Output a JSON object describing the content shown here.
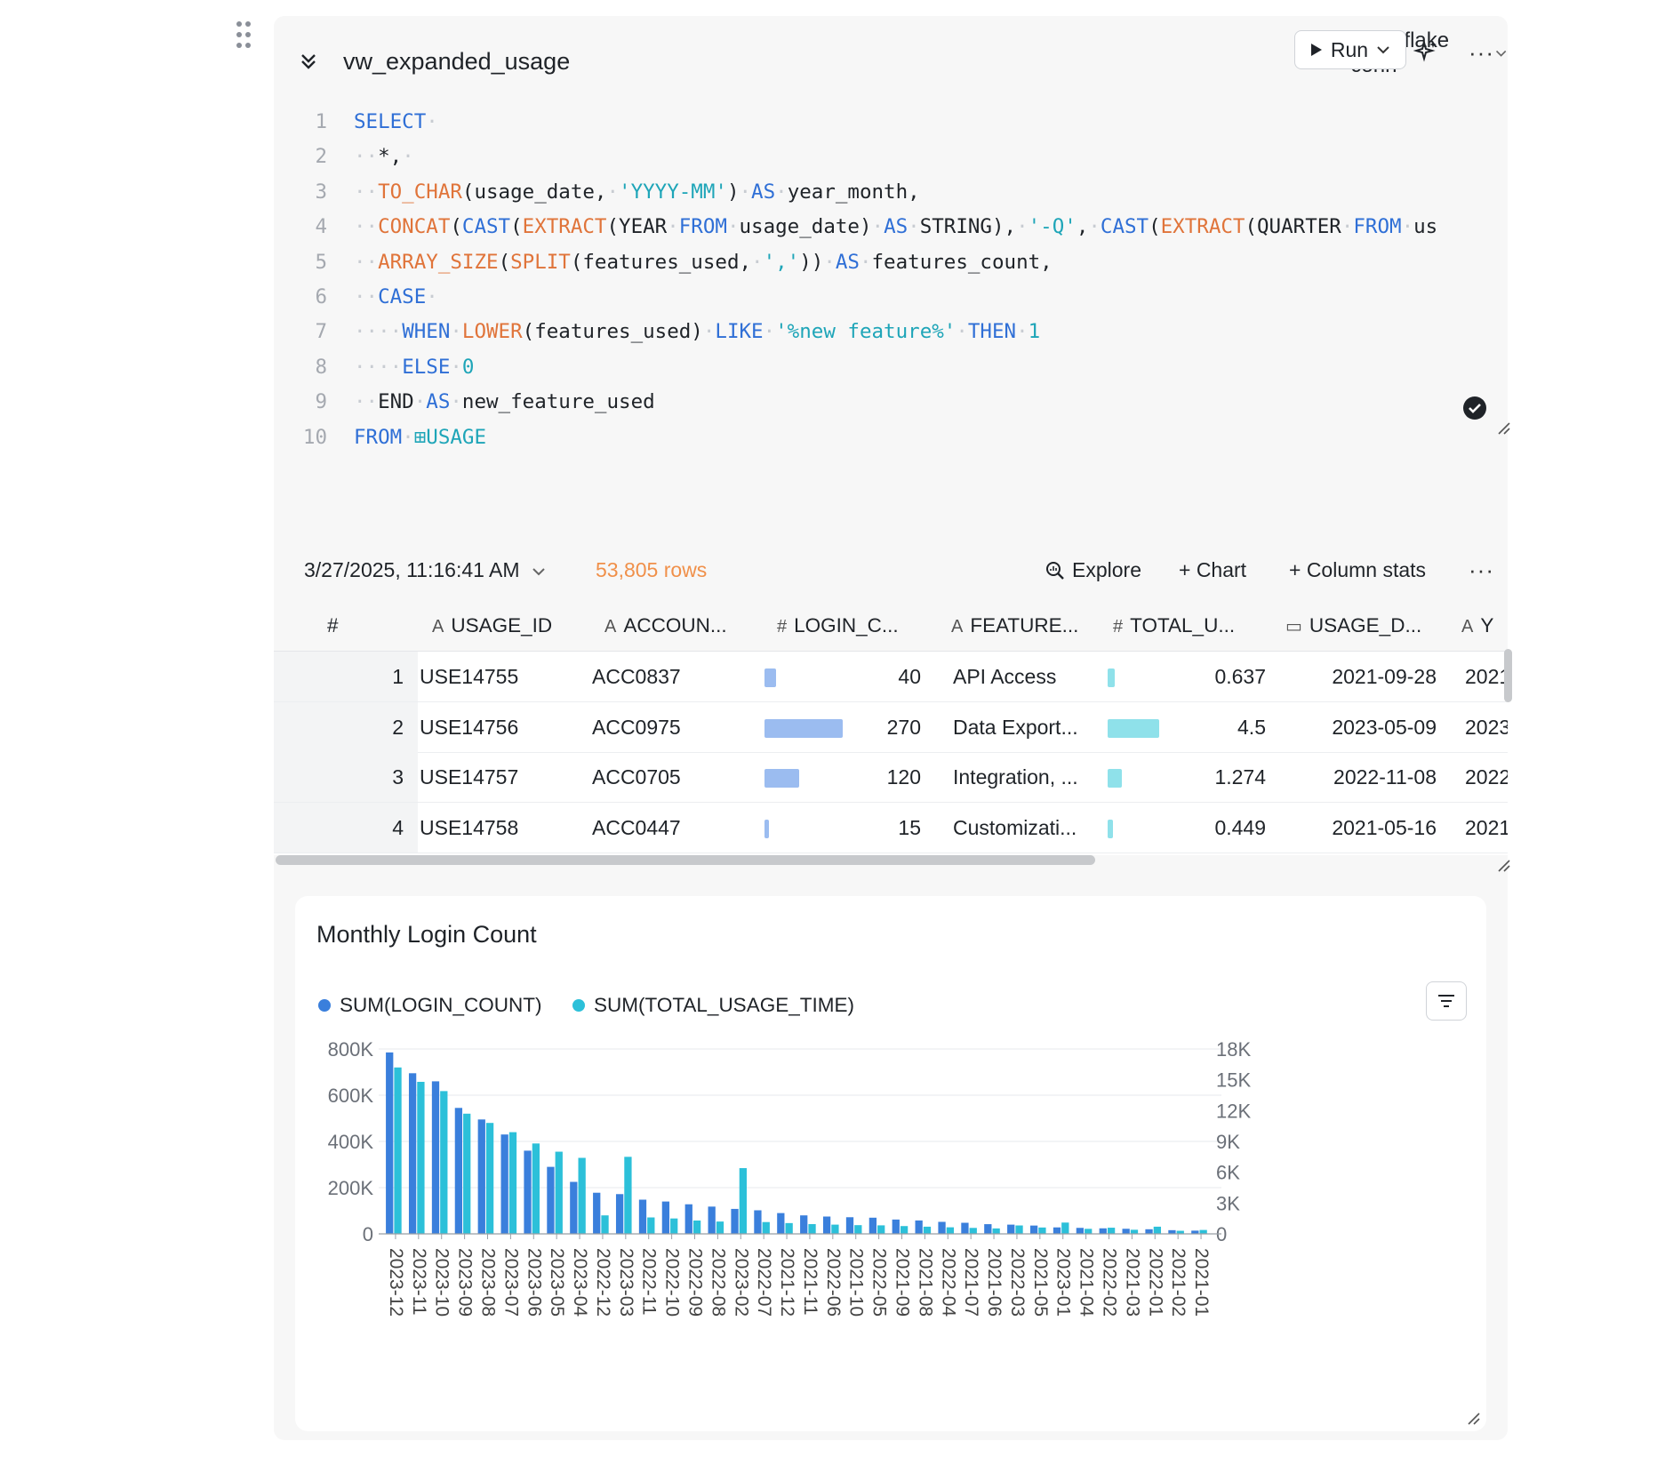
{
  "cell": {
    "title": "vw_expanded_usage",
    "connection_label": "Snowflake conn",
    "run_label": "Run"
  },
  "code_lines": [
    {
      "n": "1",
      "html": "<span class=\"kw\">SELECT</span><span class=\"ws\">·</span>"
    },
    {
      "n": "2",
      "html": "<span class=\"ws\">··</span>*,<span class=\"ws\">·</span>"
    },
    {
      "n": "3",
      "html": "<span class=\"ws\">··</span><span class=\"fn\">TO_CHAR</span>(usage_date,<span class=\"ws\">·</span><span class=\"str\">'YYYY-MM'</span>)<span class=\"ws\">·</span><span class=\"kw\">AS</span><span class=\"ws\">·</span>year_month,"
    },
    {
      "n": "4",
      "html": "<span class=\"ws\">··</span><span class=\"fn\">CONCAT</span>(<span class=\"kw\">CAST</span>(<span class=\"fn\">EXTRACT</span>(YEAR<span class=\"ws\">·</span><span class=\"kw\">FROM</span><span class=\"ws\">·</span>usage_date)<span class=\"ws\">·</span><span class=\"kw\">AS</span><span class=\"ws\">·</span>STRING),<span class=\"ws\">·</span><span class=\"str\">'-Q'</span>,<span class=\"ws\">·</span><span class=\"kw\">CAST</span>(<span class=\"fn\">EXTRACT</span>(QUARTER<span class=\"ws\">·</span><span class=\"kw\">FROM</span><span class=\"ws\">·</span>us"
    },
    {
      "n": "5",
      "html": "<span class=\"ws\">··</span><span class=\"fn\">ARRAY_SIZE</span>(<span class=\"fn\">SPLIT</span>(features_used,<span class=\"ws\">·</span><span class=\"str\">','</span>))<span class=\"ws\">·</span><span class=\"kw\">AS</span><span class=\"ws\">·</span>features_count,"
    },
    {
      "n": "6",
      "html": "<span class=\"ws\">··</span><span class=\"kw\">CASE</span><span class=\"ws\">·</span>"
    },
    {
      "n": "7",
      "html": "<span class=\"ws\">····</span><span class=\"kw\">WHEN</span><span class=\"ws\">·</span><span class=\"fn\">LOWER</span>(features_used)<span class=\"ws\">·</span><span class=\"kw\">LIKE</span><span class=\"ws\">·</span><span class=\"str\">'%new feature%'</span><span class=\"ws\">·</span><span class=\"kw\">THEN</span><span class=\"ws\">·</span><span class=\"num\">1</span>"
    },
    {
      "n": "8",
      "html": "<span class=\"ws\">····</span><span class=\"kw\">ELSE</span><span class=\"ws\">·</span><span class=\"num\">0</span>"
    },
    {
      "n": "9",
      "html": "<span class=\"ws\">··</span>END<span class=\"ws\">·</span><span class=\"kw\">AS</span><span class=\"ws\">·</span>new_feature_used"
    },
    {
      "n": "10",
      "html": "<span class=\"kw\">FROM</span><span class=\"ws\">·</span><span class=\"tbl\">⊞USAGE</span>"
    }
  ],
  "results": {
    "run_time": "3/27/2025, 11:16:41 AM",
    "row_count": "53,805 rows",
    "actions": {
      "explore": "Explore",
      "chart": "+ Chart",
      "column_stats": "+ Column stats"
    }
  },
  "table": {
    "columns": [
      {
        "icon": "#",
        "label": "#"
      },
      {
        "icon": "A",
        "label": "USAGE_ID"
      },
      {
        "icon": "A",
        "label": "ACCOUN..."
      },
      {
        "icon": "#",
        "label": "LOGIN_C..."
      },
      {
        "icon": "A",
        "label": "FEATURE..."
      },
      {
        "icon": "#",
        "label": "TOTAL_U..."
      },
      {
        "icon": "calendar-icon",
        "label": "USAGE_D..."
      },
      {
        "icon": "A",
        "label": "Y"
      }
    ],
    "rows": [
      {
        "n": "1",
        "usage_id": "USE14755",
        "account": "ACC0837",
        "login": "40",
        "login_frac": 0.148,
        "feature": "API Access",
        "total": "0.637",
        "total_frac": 0.142,
        "date": "2021-09-28",
        "ym": "2021"
      },
      {
        "n": "2",
        "usage_id": "USE14756",
        "account": "ACC0975",
        "login": "270",
        "login_frac": 1.0,
        "feature": "Data Export...",
        "total": "4.5",
        "total_frac": 1.0,
        "date": "2023-05-09",
        "ym": "2023"
      },
      {
        "n": "3",
        "usage_id": "USE14757",
        "account": "ACC0705",
        "login": "120",
        "login_frac": 0.444,
        "feature": "Integration, ...",
        "total": "1.274",
        "total_frac": 0.283,
        "date": "2022-11-08",
        "ym": "2022"
      },
      {
        "n": "4",
        "usage_id": "USE14758",
        "account": "ACC0447",
        "login": "15",
        "login_frac": 0.056,
        "feature": "Customizati...",
        "total": "0.449",
        "total_frac": 0.1,
        "date": "2021-05-16",
        "ym": "2021"
      }
    ]
  },
  "colors": {
    "login_series": "#3a7fdc",
    "usage_series": "#2cc0d9",
    "login_bar_cell": "#9bbcf0",
    "usage_bar_cell": "#8fe1ea"
  },
  "chart_data": {
    "type": "bar",
    "title": "Monthly Login Count",
    "categories": [
      "2023-12",
      "2023-11",
      "2023-10",
      "2023-09",
      "2023-08",
      "2023-07",
      "2023-06",
      "2023-05",
      "2023-04",
      "2022-12",
      "2023-03",
      "2022-11",
      "2022-10",
      "2022-09",
      "2022-08",
      "2023-02",
      "2022-07",
      "2021-12",
      "2021-11",
      "2022-06",
      "2021-10",
      "2022-05",
      "2021-09",
      "2021-08",
      "2022-04",
      "2021-07",
      "2021-06",
      "2022-03",
      "2021-05",
      "2023-01",
      "2021-04",
      "2022-02",
      "2021-03",
      "2022-01",
      "2021-02",
      "2021-01"
    ],
    "series": [
      {
        "name": "SUM(LOGIN_COUNT)",
        "axis": "left",
        "values": [
          785000,
          695000,
          660000,
          545000,
          495000,
          430000,
          360000,
          290000,
          225000,
          178000,
          172000,
          148000,
          140000,
          128000,
          118000,
          108000,
          102000,
          90000,
          80000,
          75000,
          72000,
          70000,
          62000,
          58000,
          52000,
          48000,
          42000,
          40000,
          36000,
          28000,
          26000,
          24000,
          22000,
          20000,
          16000,
          14000
        ]
      },
      {
        "name": "SUM(TOTAL_USAGE_TIME)",
        "axis": "right",
        "values": [
          16200,
          14800,
          13900,
          11700,
          10800,
          9900,
          8800,
          8000,
          7400,
          1800,
          7500,
          1600,
          1500,
          1300,
          1200,
          6400,
          1150,
          1050,
          950,
          900,
          850,
          830,
          760,
          700,
          640,
          580,
          530,
          820,
          620,
          1100,
          490,
          600,
          400,
          700,
          300,
          380
        ]
      }
    ],
    "y_left": {
      "ticks": [
        "0",
        "200K",
        "400K",
        "600K",
        "800K"
      ],
      "ylim": [
        0,
        800000
      ]
    },
    "y_right": {
      "ticks": [
        "0",
        "3K",
        "6K",
        "9K",
        "12K",
        "15K",
        "18K"
      ],
      "ylim": [
        0,
        18000
      ]
    },
    "grid": true,
    "legend_position": "top-left"
  }
}
